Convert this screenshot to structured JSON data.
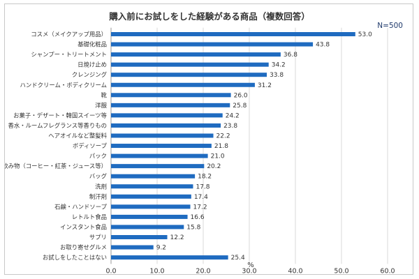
{
  "chart_data": {
    "type": "bar",
    "orientation": "horizontal",
    "title": "購入前にお試しをした経験がある商品（複数回答）",
    "note": "N=500",
    "xlabel": "%",
    "xlim": [
      0,
      60
    ],
    "xticks": [
      "0.0",
      "10.0",
      "20.0",
      "30.0",
      "40.0",
      "50.0",
      "60.0"
    ],
    "grid": true,
    "bar_color": "#1f6bc0",
    "categories": [
      "コスメ（メイクアップ用品）",
      "基礎化粧品",
      "シャンプー・トリートメント",
      "日焼け止め",
      "クレンジング",
      "ハンドクリーム・ボディクリーム",
      "靴",
      "洋服",
      "お菓子・デザート・韓国スイーツ等",
      "香水・ルームフレグランス等香りもの",
      "ヘアオイルなど整髪料",
      "ボディソープ",
      "パック",
      "飲み物（コーヒー・紅茶・ジュース等）",
      "バッグ",
      "洗剤",
      "制汗剤",
      "石鹸・ハンドソープ",
      "レトルト食品",
      "インスタント食品",
      "サプリ",
      "お取り寄せグルメ",
      "お試しをしたことはない"
    ],
    "values": [
      53.0,
      43.8,
      36.8,
      34.2,
      33.8,
      31.2,
      26.0,
      25.8,
      24.2,
      23.8,
      22.2,
      21.8,
      21.0,
      20.2,
      18.2,
      17.8,
      17.4,
      17.2,
      16.6,
      15.8,
      12.2,
      9.2,
      25.4
    ],
    "value_labels": [
      "53.0",
      "43.8",
      "36.8",
      "34.2",
      "33.8",
      "31.2",
      "26.0",
      "25.8",
      "24.2",
      "23.8",
      "22.2",
      "21.8",
      "21.0",
      "20.2",
      "18.2",
      "17.8",
      "17.4",
      "17.2",
      "16.6",
      "15.8",
      "12.2",
      "9.2",
      "25.4"
    ]
  }
}
